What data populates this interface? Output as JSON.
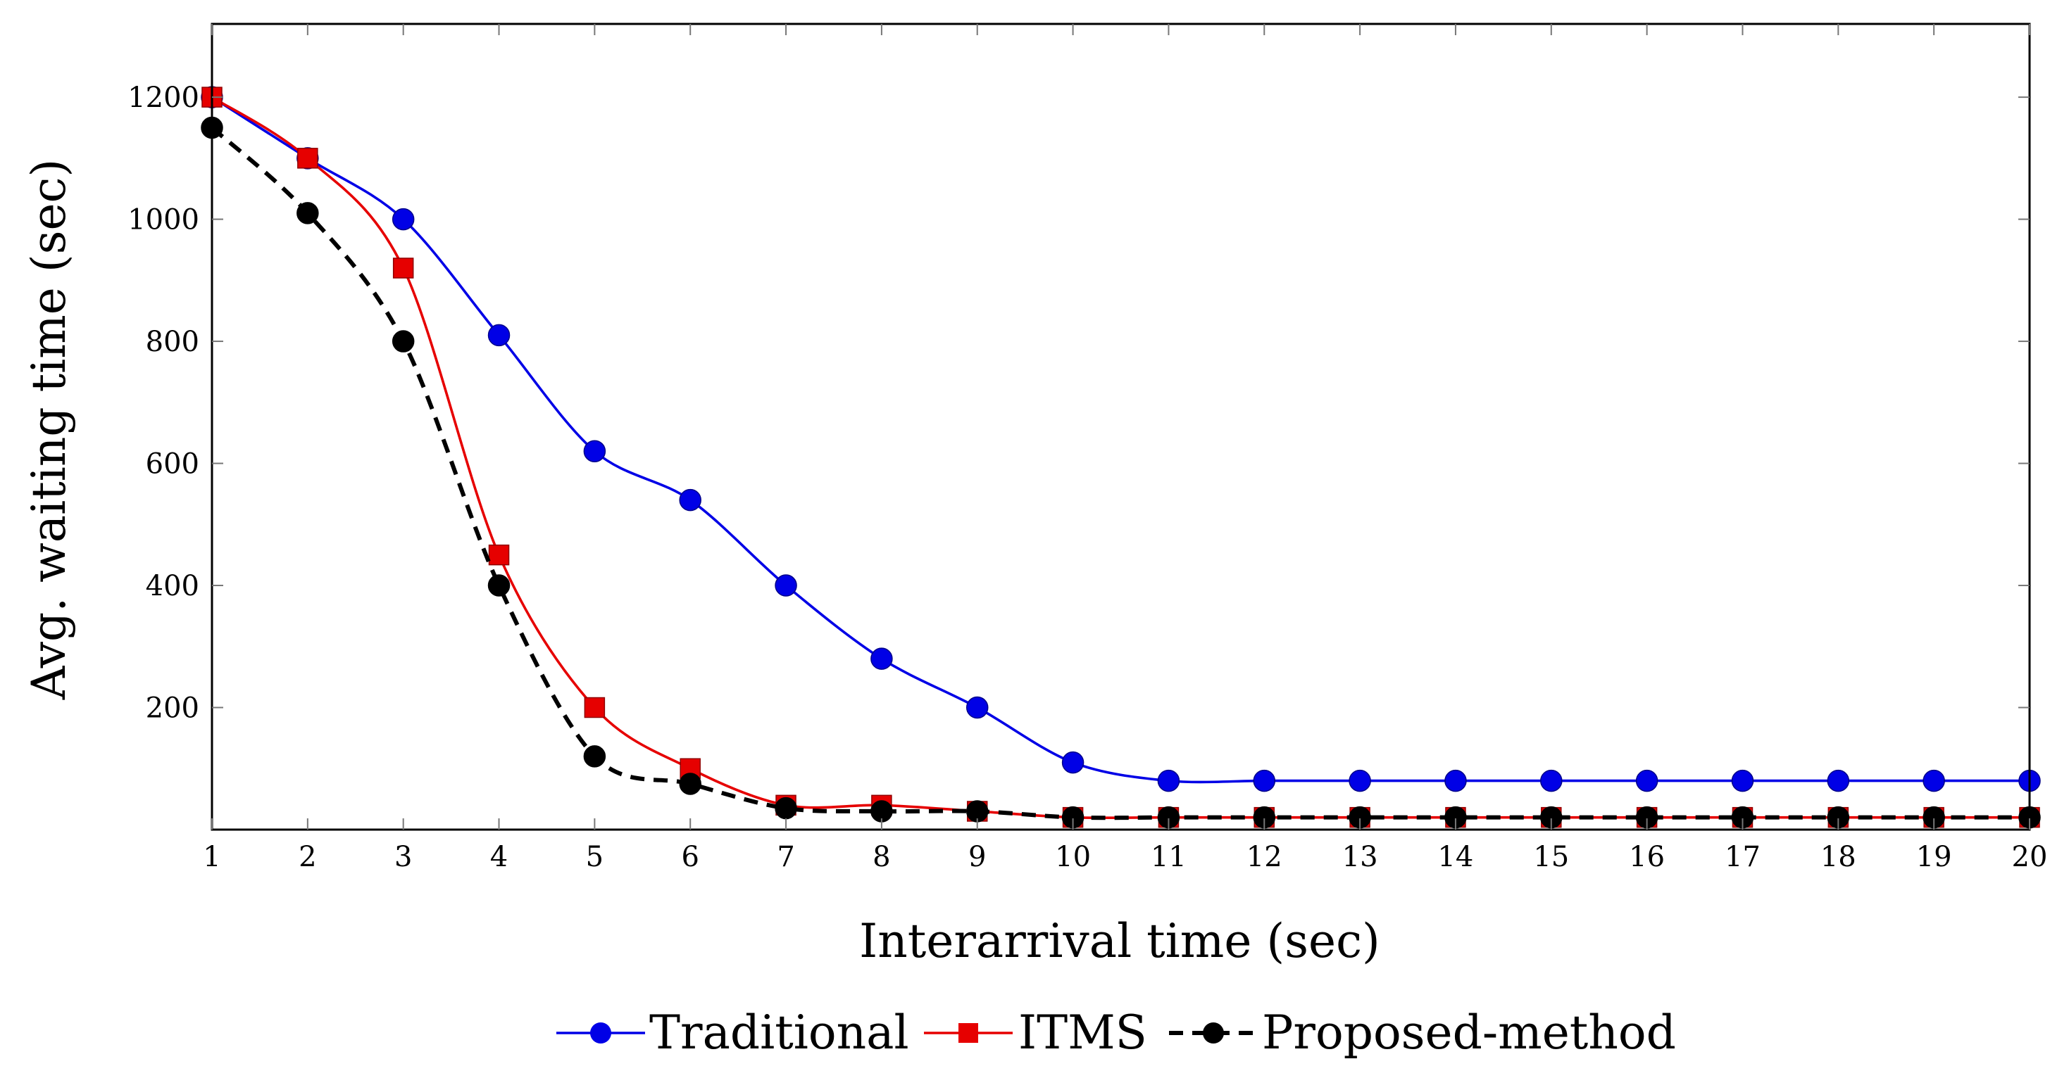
{
  "chart_data": {
    "type": "line",
    "title": "",
    "xlabel": "Interarrival time (sec)",
    "ylabel": "Avg. waiting time (sec)",
    "x": [
      1,
      2,
      3,
      4,
      5,
      6,
      7,
      8,
      9,
      10,
      11,
      12,
      13,
      14,
      15,
      16,
      17,
      18,
      19,
      20
    ],
    "xlim": [
      1,
      20
    ],
    "ylim": [
      0,
      1320
    ],
    "yticks": [
      200,
      400,
      600,
      800,
      1000,
      1200
    ],
    "grid": false,
    "legend_position": "bottom",
    "series": [
      {
        "name": "Traditional",
        "color": "#0000e6",
        "marker": "circle",
        "dash": "solid",
        "values": [
          1200,
          1100,
          1000,
          810,
          620,
          540,
          400,
          280,
          200,
          110,
          80,
          80,
          80,
          80,
          80,
          80,
          80,
          80,
          80,
          80
        ]
      },
      {
        "name": "ITMS",
        "color": "#e60000",
        "marker": "square",
        "dash": "solid",
        "values": [
          1200,
          1100,
          920,
          450,
          200,
          100,
          40,
          40,
          30,
          20,
          20,
          20,
          20,
          20,
          20,
          20,
          20,
          20,
          20,
          20
        ]
      },
      {
        "name": "Proposed-method",
        "color": "#000000",
        "marker": "circle",
        "dash": "dashed",
        "values": [
          1150,
          1010,
          800,
          400,
          120,
          75,
          35,
          30,
          30,
          20,
          20,
          20,
          20,
          20,
          20,
          20,
          20,
          20,
          20,
          20
        ]
      }
    ]
  }
}
